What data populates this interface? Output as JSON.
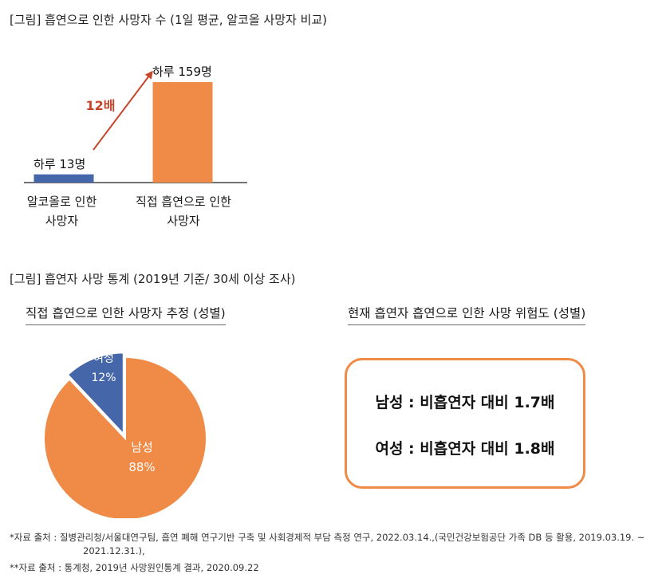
{
  "figure1": {
    "title": "[그림] 흡연으로 인한 사망자 수 (1일 평균, 알코올 사망자 비교)"
  },
  "figure2": {
    "title": "[그림] 흡연자 사망 통계 (2019년 기준/ 30세 이상 조사)"
  },
  "chart_data": [
    {
      "type": "bar",
      "title": "[그림] 흡연으로 인한 사망자 수 (1일 평균, 알코올 사망자 비교)",
      "categories": [
        "알코올로 인한\n사망자",
        "직접 흡연으로 인한\n사망자"
      ],
      "category_lines": [
        [
          "알코올로 인한",
          "사망자"
        ],
        [
          "직접 흡연으로 인한",
          "사망자"
        ]
      ],
      "values": [
        13,
        159
      ],
      "value_labels": [
        "하루 13명",
        "하루 159명"
      ],
      "colors": [
        "#4566a8",
        "#ef8a47"
      ],
      "annotation": {
        "text": "12배",
        "color": "#c8452a"
      },
      "ylim": [
        0,
        159
      ],
      "grid": false
    },
    {
      "type": "pie",
      "title": "직접 흡연으로 인한 사망자 추정 (성별)",
      "slices": [
        {
          "label": "여성",
          "value": 12,
          "value_label": "12%",
          "color": "#4566a8"
        },
        {
          "label": "남성",
          "value": 88,
          "value_label": "88%",
          "color": "#ef8a47"
        }
      ]
    }
  ],
  "risk_panel": {
    "heading": "현재 흡연자 흡연으로 인한 사망 위험도 (성별)",
    "lines": [
      "남성 : 비흡연자 대비 1.7배",
      "여성 : 비흡연자 대비 1.8배"
    ],
    "border_color": "#ef8a47"
  },
  "footnotes": {
    "line1": "*자료 출처 : 질병관리청/서울대연구팀, 흡연 폐해 연구기반 구축 및 사회경제적 부담 측정 연구, 2022.03.14.,(국민건강보험공단 가족 DB 등 활용, 2019.03.19. ~",
    "line1_cont": "2021.12.31.),",
    "line2": "**자료 출처 : 통계청, 2019년 사망원인통계 결과, 2020.09.22"
  }
}
